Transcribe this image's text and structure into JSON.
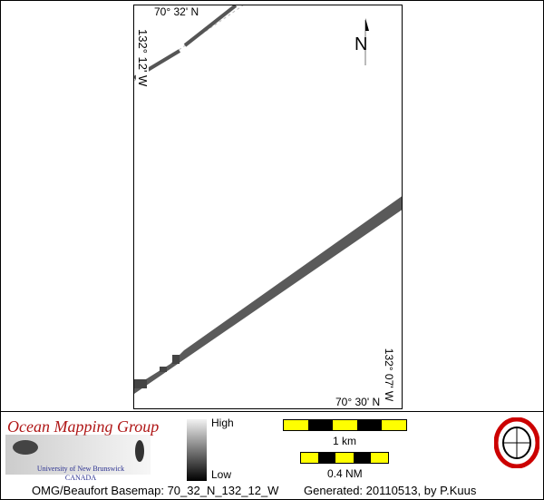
{
  "map": {
    "top_lat": "70° 32' N",
    "left_lon": "132° 12' W",
    "right_lon": "132° 07' W",
    "bottom_lat": "70° 30' N",
    "north": "N"
  },
  "legend": {
    "high": "High",
    "low": "Low",
    "scale_km": "1 km",
    "scale_nm": "0.4 NM"
  },
  "logo": {
    "group": "Ocean Mapping Group",
    "university": "University of New Brunswick",
    "country": "CANADA"
  },
  "footer": {
    "basemap": "OMG/Beaufort Basemap: 70_32_N_132_12_W",
    "generated": "Generated: 20110513, by P.Kuus"
  },
  "colors": {
    "scale_yellow": "#ffff00",
    "logo_red": "#b01818"
  }
}
